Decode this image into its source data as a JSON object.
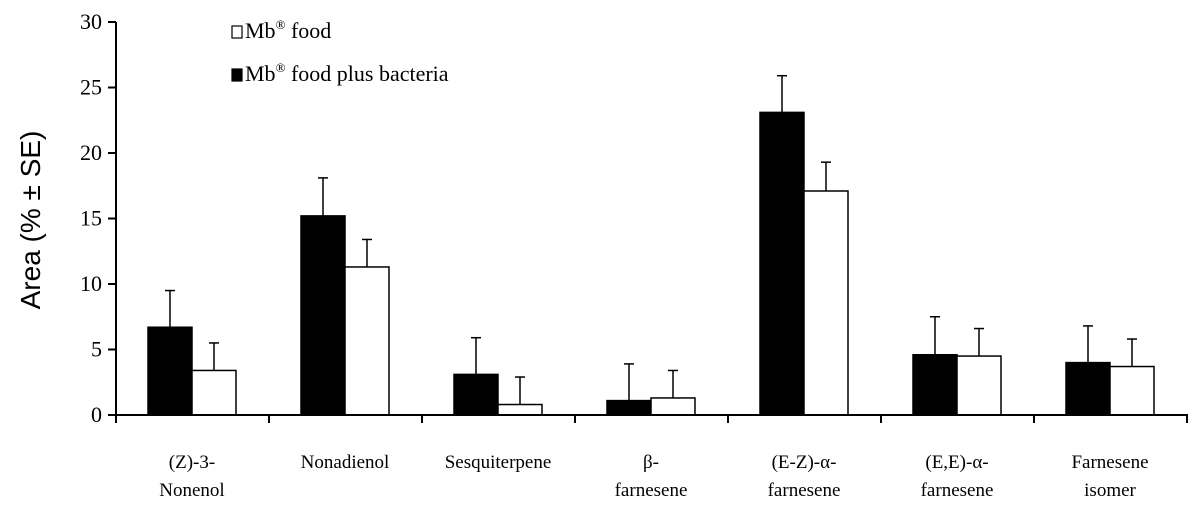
{
  "chart_data": {
    "type": "bar",
    "title": "",
    "ylabel": "Area (% ± SE)",
    "xlabel": "",
    "ylim": [
      0,
      30
    ],
    "yticks": [
      0,
      5,
      10,
      15,
      20,
      25,
      30
    ],
    "categories": [
      [
        "(Z)-3-",
        "Nonenol"
      ],
      [
        "Nonadienol"
      ],
      [
        "Sesquiterpene"
      ],
      [
        "β-",
        "farnesene"
      ],
      [
        "(E-Z)-α-",
        "farnesene"
      ],
      [
        "(E,E)-α-",
        "farnesene"
      ],
      [
        "Farnesene",
        "isomer"
      ]
    ],
    "series": [
      {
        "name": "Mb® food plus bacteria",
        "legend_base": "Mb",
        "legend_sup": "®",
        "legend_suffix": " food plus bacteria",
        "fill": "#000000",
        "values": [
          6.7,
          15.2,
          3.1,
          1.1,
          23.1,
          4.6,
          4.0
        ],
        "errors": [
          2.8,
          2.9,
          2.8,
          2.8,
          2.8,
          2.9,
          2.8
        ]
      },
      {
        "name": "Mb® food",
        "legend_base": "Mb",
        "legend_sup": "®",
        "legend_suffix": " food",
        "fill": "#ffffff",
        "values": [
          3.4,
          11.3,
          0.8,
          1.3,
          17.1,
          4.5,
          3.7
        ],
        "errors": [
          2.1,
          2.1,
          2.1,
          2.1,
          2.2,
          2.1,
          2.1
        ]
      }
    ],
    "legend_order": [
      1,
      0
    ],
    "grid": false
  }
}
